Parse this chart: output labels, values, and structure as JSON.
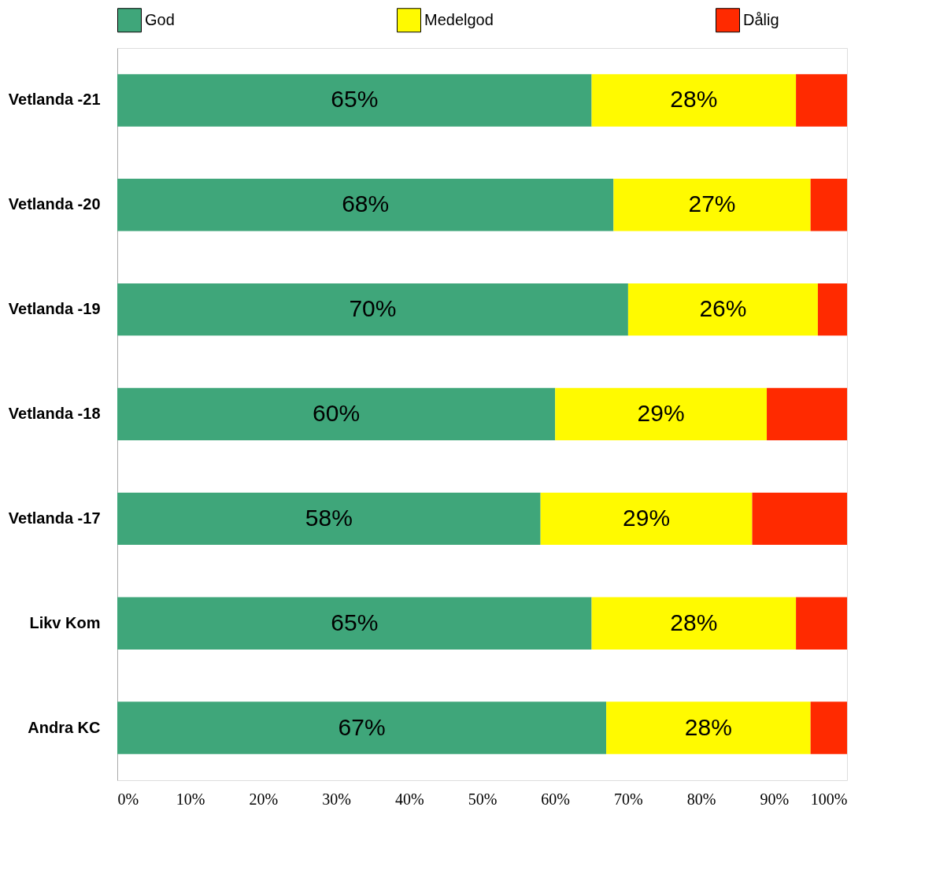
{
  "chart_data": {
    "type": "bar",
    "orientation": "horizontal",
    "stacked": true,
    "categories": [
      "Vetlanda -21",
      "Vetlanda -20",
      "Vetlanda -19",
      "Vetlanda -18",
      "Vetlanda -17",
      "Likv Kom",
      "Andra KC"
    ],
    "series": [
      {
        "name": "God",
        "color": "#3fa67a",
        "values": [
          65,
          68,
          70,
          60,
          58,
          65,
          67
        ],
        "value_labels": [
          "65%",
          "68%",
          "70%",
          "60%",
          "58%",
          "65%",
          "67%"
        ]
      },
      {
        "name": "Medelgod",
        "color": "#fffa00",
        "values": [
          28,
          27,
          26,
          29,
          29,
          28,
          28
        ],
        "value_labels": [
          "28%",
          "27%",
          "26%",
          "29%",
          "29%",
          "28%",
          "28%"
        ]
      },
      {
        "name": "Dålig",
        "color": "#ff2a00",
        "values": [
          7,
          5,
          4,
          11,
          13,
          7,
          5
        ]
      }
    ],
    "xlim": [
      0,
      100
    ],
    "xticks": [
      {
        "value": 0,
        "label": "0%"
      },
      {
        "value": 10,
        "label": "10%"
      },
      {
        "value": 20,
        "label": "20%"
      },
      {
        "value": 30,
        "label": "30%"
      },
      {
        "value": 40,
        "label": "40%"
      },
      {
        "value": 50,
        "label": "50%"
      },
      {
        "value": 60,
        "label": "60%"
      },
      {
        "value": 70,
        "label": "70%"
      },
      {
        "value": 80,
        "label": "80%"
      },
      {
        "value": 90,
        "label": "90%"
      },
      {
        "value": 100,
        "label": "100%"
      }
    ],
    "legend": "top",
    "grid": false
  }
}
